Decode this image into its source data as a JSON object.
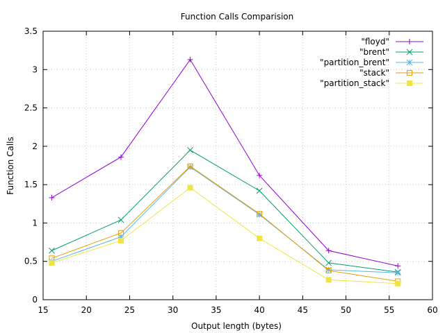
{
  "chart_data": {
    "type": "line",
    "title": "Function Calls Comparision",
    "xlabel": "Output length (bytes)",
    "ylabel": "Function Calls",
    "xlim": [
      15,
      60
    ],
    "ylim": [
      0,
      3.5
    ],
    "x_ticks": [
      15,
      20,
      25,
      30,
      35,
      40,
      45,
      50,
      55,
      60
    ],
    "y_ticks": [
      0,
      0.5,
      1,
      1.5,
      2,
      2.5,
      3,
      3.5
    ],
    "grid": true,
    "legend_position": "top-right",
    "x": [
      16,
      24,
      32,
      40,
      48,
      56
    ],
    "series": [
      {
        "name": "\"floyd\"",
        "color": "#9400d3",
        "marker": "plus",
        "values": [
          1.33,
          1.86,
          3.13,
          1.62,
          0.64,
          0.44
        ]
      },
      {
        "name": "\"brent\"",
        "color": "#009e73",
        "marker": "cross",
        "values": [
          0.64,
          1.04,
          1.95,
          1.42,
          0.48,
          0.36
        ]
      },
      {
        "name": "\"partition_brent\"",
        "color": "#56b4e9",
        "marker": "star",
        "values": [
          0.5,
          0.82,
          1.73,
          1.11,
          0.39,
          0.35
        ]
      },
      {
        "name": "\"stack\"",
        "color": "#e69f00",
        "marker": "open-square",
        "values": [
          0.54,
          0.87,
          1.74,
          1.12,
          0.38,
          0.24
        ]
      },
      {
        "name": "\"partition_stack\"",
        "color": "#f0e442",
        "marker": "filled-square",
        "values": [
          0.48,
          0.77,
          1.46,
          0.8,
          0.26,
          0.21
        ]
      }
    ]
  }
}
